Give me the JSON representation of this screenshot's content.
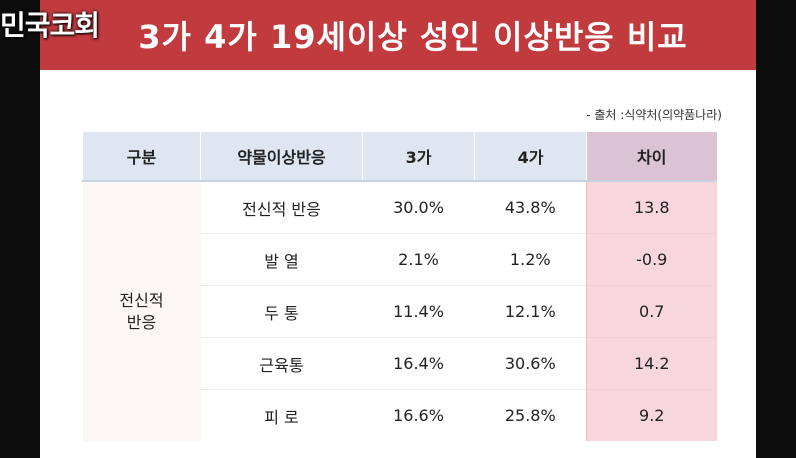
{
  "overlay_text": "민국코회",
  "title": "3가 4가 19세이상 성인 이상반응 비교",
  "source": "- 출처 :식약처(의약품나라)",
  "table": {
    "headers": [
      "구분",
      "약물이상반응",
      "3가",
      "4가",
      "차이"
    ],
    "category": "전신적\n반응",
    "rows": [
      {
        "reaction": "전신적 반응",
        "v3": "30.0%",
        "v4": "43.8%",
        "diff": "13.8"
      },
      {
        "reaction": "발 열",
        "v3": "2.1%",
        "v4": "1.2%",
        "diff": "-0.9"
      },
      {
        "reaction": "두 통",
        "v3": "11.4%",
        "v4": "12.1%",
        "diff": "0.7"
      },
      {
        "reaction": "근육통",
        "v3": "16.4%",
        "v4": "30.6%",
        "diff": "14.2"
      },
      {
        "reaction": "피 로",
        "v3": "16.6%",
        "v4": "25.8%",
        "diff": "9.2"
      }
    ]
  }
}
